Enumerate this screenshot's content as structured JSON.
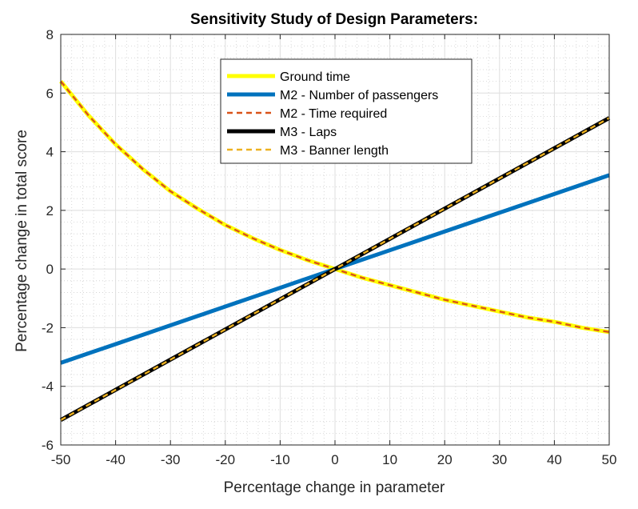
{
  "chart_data": {
    "type": "line",
    "title": "Sensitivity Study of Design Parameters:",
    "xlabel": "Percentage change in parameter",
    "ylabel": "Percentage change in total score",
    "xlim": [
      -50,
      50
    ],
    "ylim": [
      -6,
      8
    ],
    "xticks": [
      -50,
      -40,
      -30,
      -20,
      -10,
      0,
      10,
      20,
      30,
      40,
      50
    ],
    "yticks": [
      -6,
      -4,
      -2,
      0,
      2,
      4,
      6,
      8
    ],
    "grid": true,
    "minor_grid": true,
    "legend_position": "top-center",
    "x": [
      -50,
      -45,
      -40,
      -35,
      -30,
      -25,
      -20,
      -15,
      -10,
      -5,
      0,
      5,
      10,
      15,
      20,
      25,
      30,
      35,
      40,
      45,
      50
    ],
    "series": [
      {
        "name": "Ground time",
        "color": "#ffff00",
        "style": "solid",
        "values": [
          6.4,
          5.25,
          4.25,
          3.4,
          2.65,
          2.05,
          1.5,
          1.05,
          0.65,
          0.3,
          0.0,
          -0.3,
          -0.55,
          -0.8,
          -1.05,
          -1.25,
          -1.45,
          -1.65,
          -1.8,
          -2.0,
          -2.15
        ]
      },
      {
        "name": "M2 - Number of passengers",
        "color": "#0072bd",
        "style": "solid",
        "values": [
          -3.2,
          -2.88,
          -2.56,
          -2.24,
          -1.92,
          -1.6,
          -1.28,
          -0.96,
          -0.64,
          -0.32,
          0.0,
          0.32,
          0.64,
          0.96,
          1.28,
          1.6,
          1.92,
          2.24,
          2.56,
          2.88,
          3.2
        ]
      },
      {
        "name": "M2 - Time required",
        "color": "#d95319",
        "style": "dashed",
        "values": [
          6.4,
          5.25,
          4.25,
          3.4,
          2.65,
          2.05,
          1.5,
          1.05,
          0.65,
          0.3,
          0.0,
          -0.3,
          -0.55,
          -0.8,
          -1.05,
          -1.25,
          -1.45,
          -1.65,
          -1.8,
          -2.0,
          -2.15
        ]
      },
      {
        "name": "M3 - Laps",
        "color": "#000000",
        "style": "solid",
        "values": [
          -5.15,
          -4.635,
          -4.12,
          -3.605,
          -3.09,
          -2.575,
          -2.06,
          -1.545,
          -1.03,
          -0.515,
          0.0,
          0.515,
          1.03,
          1.545,
          2.06,
          2.575,
          3.09,
          3.605,
          4.12,
          4.635,
          5.15
        ]
      },
      {
        "name": "M3 - Banner length",
        "color": "#edb120",
        "style": "dashed",
        "values": [
          -5.15,
          -4.635,
          -4.12,
          -3.605,
          -3.09,
          -2.575,
          -2.06,
          -1.545,
          -1.03,
          -0.515,
          0.0,
          0.515,
          1.03,
          1.545,
          2.06,
          2.575,
          3.09,
          3.605,
          4.12,
          4.635,
          5.15
        ]
      }
    ]
  }
}
